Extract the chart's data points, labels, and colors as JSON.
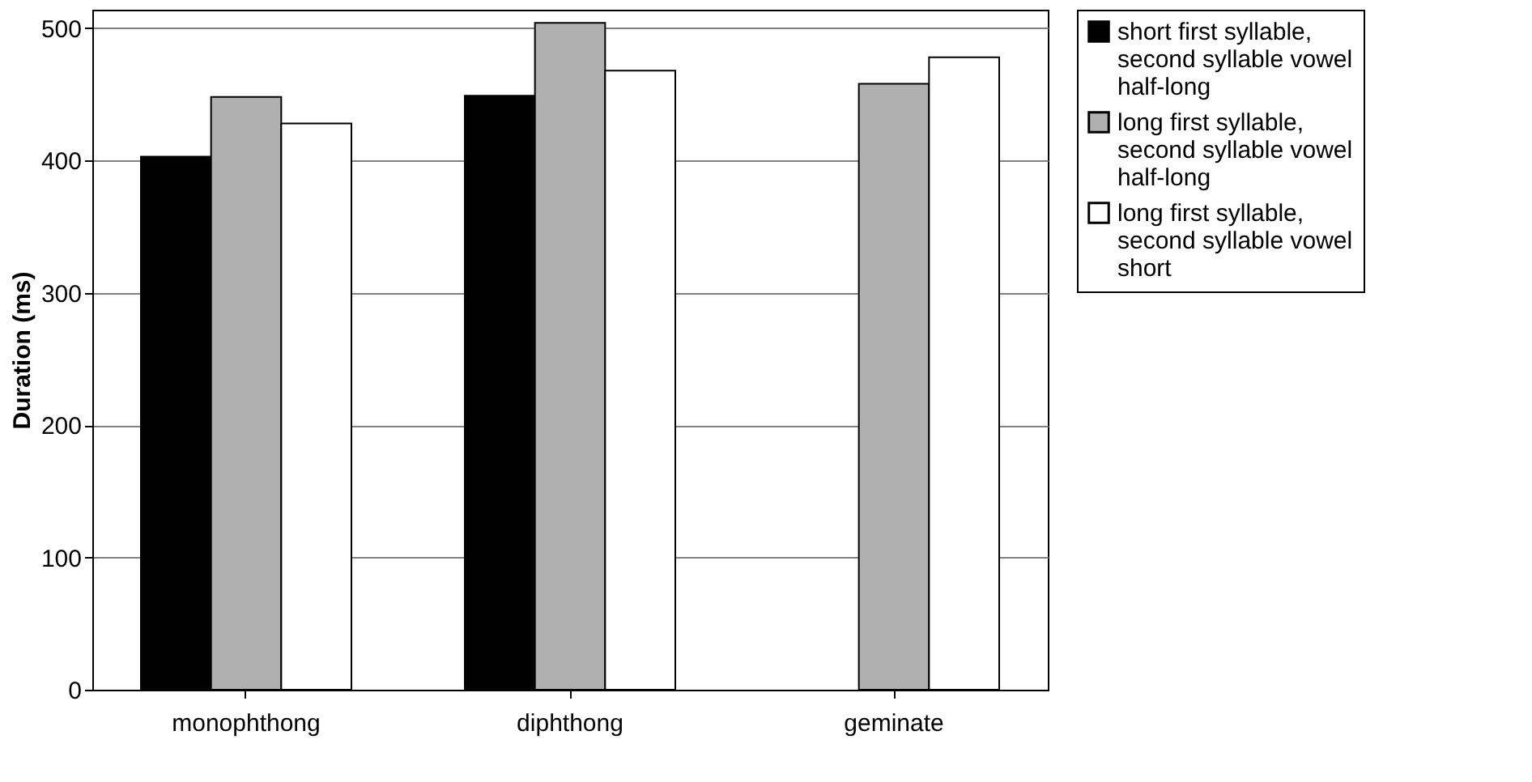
{
  "chart_data": {
    "type": "bar",
    "ylabel": "Duration (ms)",
    "categories": [
      "monophthong",
      "diphthong",
      "geminate"
    ],
    "series": [
      {
        "name": "short first syllable, second syllable vowel half-long",
        "color": "#000000",
        "values": [
          403,
          449,
          null
        ]
      },
      {
        "name": "long first syllable, second syllable vowel half-long",
        "color": "#b0b0b0",
        "values": [
          448,
          504,
          458
        ]
      },
      {
        "name": "long first syllable, second syllable vowel short",
        "color": "#ffffff",
        "values": [
          428,
          468,
          478
        ]
      }
    ],
    "ylim": [
      0,
      514
    ],
    "yticks": [
      0,
      100,
      200,
      300,
      400,
      500
    ],
    "grid": "y",
    "legend": "right"
  }
}
